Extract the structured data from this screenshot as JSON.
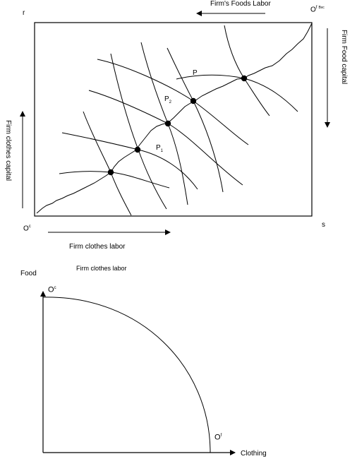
{
  "edgeworth_box": {
    "corner_top_left": "r",
    "corner_bottom_right": "s",
    "origin_clothes": {
      "base": "O",
      "sup": "c"
    },
    "origin_food": {
      "base": "O",
      "sup": "f",
      "sup2": "Bvc"
    },
    "arrow_top_label": "Firm's Foods Labor",
    "arrow_right_label": "Firm Food capital",
    "arrow_left_label": "Firm clothes capital",
    "arrow_bottom_label": "Firm clothes labor",
    "points": {
      "p": "P",
      "p1": {
        "base": "P",
        "sub": "1"
      },
      "p2": {
        "base": "P",
        "sub": "2"
      }
    }
  },
  "stray_label": "Firm clothes labor",
  "ppf": {
    "y_label": "Food",
    "x_label": "Clothing",
    "origin_clothes": {
      "base": "O",
      "sup": "c"
    },
    "origin_food": {
      "base": "O",
      "sup": "f"
    }
  }
}
